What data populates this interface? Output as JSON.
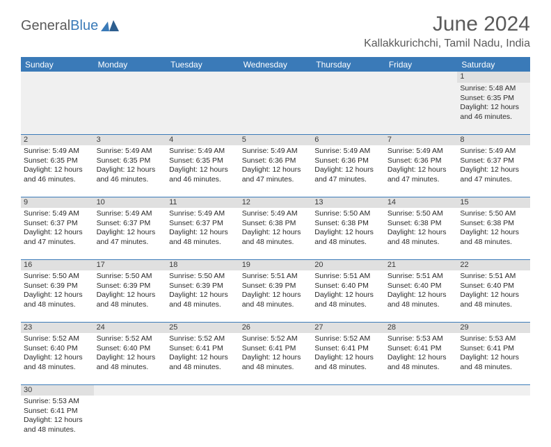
{
  "logo": {
    "part1": "General",
    "part2": "Blue"
  },
  "title": "June 2024",
  "location": "Kallakkurichchi, Tamil Nadu, India",
  "colors": {
    "header_bg": "#3a7ab8",
    "header_text": "#ffffff",
    "daynum_bg": "#e0e0e0",
    "border": "#3a7ab8",
    "body_text": "#2a2a2a",
    "title_text": "#5a5a5a"
  },
  "day_headers": [
    "Sunday",
    "Monday",
    "Tuesday",
    "Wednesday",
    "Thursday",
    "Friday",
    "Saturday"
  ],
  "weeks": [
    {
      "nums": [
        "",
        "",
        "",
        "",
        "",
        "",
        "1"
      ],
      "cells": [
        null,
        null,
        null,
        null,
        null,
        null,
        {
          "sunrise": "5:48 AM",
          "sunset": "6:35 PM",
          "daylight": "12 hours and 46 minutes."
        }
      ]
    },
    {
      "nums": [
        "2",
        "3",
        "4",
        "5",
        "6",
        "7",
        "8"
      ],
      "cells": [
        {
          "sunrise": "5:49 AM",
          "sunset": "6:35 PM",
          "daylight": "12 hours and 46 minutes."
        },
        {
          "sunrise": "5:49 AM",
          "sunset": "6:35 PM",
          "daylight": "12 hours and 46 minutes."
        },
        {
          "sunrise": "5:49 AM",
          "sunset": "6:35 PM",
          "daylight": "12 hours and 46 minutes."
        },
        {
          "sunrise": "5:49 AM",
          "sunset": "6:36 PM",
          "daylight": "12 hours and 47 minutes."
        },
        {
          "sunrise": "5:49 AM",
          "sunset": "6:36 PM",
          "daylight": "12 hours and 47 minutes."
        },
        {
          "sunrise": "5:49 AM",
          "sunset": "6:36 PM",
          "daylight": "12 hours and 47 minutes."
        },
        {
          "sunrise": "5:49 AM",
          "sunset": "6:37 PM",
          "daylight": "12 hours and 47 minutes."
        }
      ]
    },
    {
      "nums": [
        "9",
        "10",
        "11",
        "12",
        "13",
        "14",
        "15"
      ],
      "cells": [
        {
          "sunrise": "5:49 AM",
          "sunset": "6:37 PM",
          "daylight": "12 hours and 47 minutes."
        },
        {
          "sunrise": "5:49 AM",
          "sunset": "6:37 PM",
          "daylight": "12 hours and 47 minutes."
        },
        {
          "sunrise": "5:49 AM",
          "sunset": "6:37 PM",
          "daylight": "12 hours and 48 minutes."
        },
        {
          "sunrise": "5:49 AM",
          "sunset": "6:38 PM",
          "daylight": "12 hours and 48 minutes."
        },
        {
          "sunrise": "5:50 AM",
          "sunset": "6:38 PM",
          "daylight": "12 hours and 48 minutes."
        },
        {
          "sunrise": "5:50 AM",
          "sunset": "6:38 PM",
          "daylight": "12 hours and 48 minutes."
        },
        {
          "sunrise": "5:50 AM",
          "sunset": "6:38 PM",
          "daylight": "12 hours and 48 minutes."
        }
      ]
    },
    {
      "nums": [
        "16",
        "17",
        "18",
        "19",
        "20",
        "21",
        "22"
      ],
      "cells": [
        {
          "sunrise": "5:50 AM",
          "sunset": "6:39 PM",
          "daylight": "12 hours and 48 minutes."
        },
        {
          "sunrise": "5:50 AM",
          "sunset": "6:39 PM",
          "daylight": "12 hours and 48 minutes."
        },
        {
          "sunrise": "5:50 AM",
          "sunset": "6:39 PM",
          "daylight": "12 hours and 48 minutes."
        },
        {
          "sunrise": "5:51 AM",
          "sunset": "6:39 PM",
          "daylight": "12 hours and 48 minutes."
        },
        {
          "sunrise": "5:51 AM",
          "sunset": "6:40 PM",
          "daylight": "12 hours and 48 minutes."
        },
        {
          "sunrise": "5:51 AM",
          "sunset": "6:40 PM",
          "daylight": "12 hours and 48 minutes."
        },
        {
          "sunrise": "5:51 AM",
          "sunset": "6:40 PM",
          "daylight": "12 hours and 48 minutes."
        }
      ]
    },
    {
      "nums": [
        "23",
        "24",
        "25",
        "26",
        "27",
        "28",
        "29"
      ],
      "cells": [
        {
          "sunrise": "5:52 AM",
          "sunset": "6:40 PM",
          "daylight": "12 hours and 48 minutes."
        },
        {
          "sunrise": "5:52 AM",
          "sunset": "6:40 PM",
          "daylight": "12 hours and 48 minutes."
        },
        {
          "sunrise": "5:52 AM",
          "sunset": "6:41 PM",
          "daylight": "12 hours and 48 minutes."
        },
        {
          "sunrise": "5:52 AM",
          "sunset": "6:41 PM",
          "daylight": "12 hours and 48 minutes."
        },
        {
          "sunrise": "5:52 AM",
          "sunset": "6:41 PM",
          "daylight": "12 hours and 48 minutes."
        },
        {
          "sunrise": "5:53 AM",
          "sunset": "6:41 PM",
          "daylight": "12 hours and 48 minutes."
        },
        {
          "sunrise": "5:53 AM",
          "sunset": "6:41 PM",
          "daylight": "12 hours and 48 minutes."
        }
      ]
    },
    {
      "nums": [
        "30",
        "",
        "",
        "",
        "",
        "",
        ""
      ],
      "cells": [
        {
          "sunrise": "5:53 AM",
          "sunset": "6:41 PM",
          "daylight": "12 hours and 48 minutes."
        },
        null,
        null,
        null,
        null,
        null,
        null
      ]
    }
  ],
  "labels": {
    "sunrise_prefix": "Sunrise: ",
    "sunset_prefix": "Sunset: ",
    "daylight_prefix": "Daylight: "
  }
}
